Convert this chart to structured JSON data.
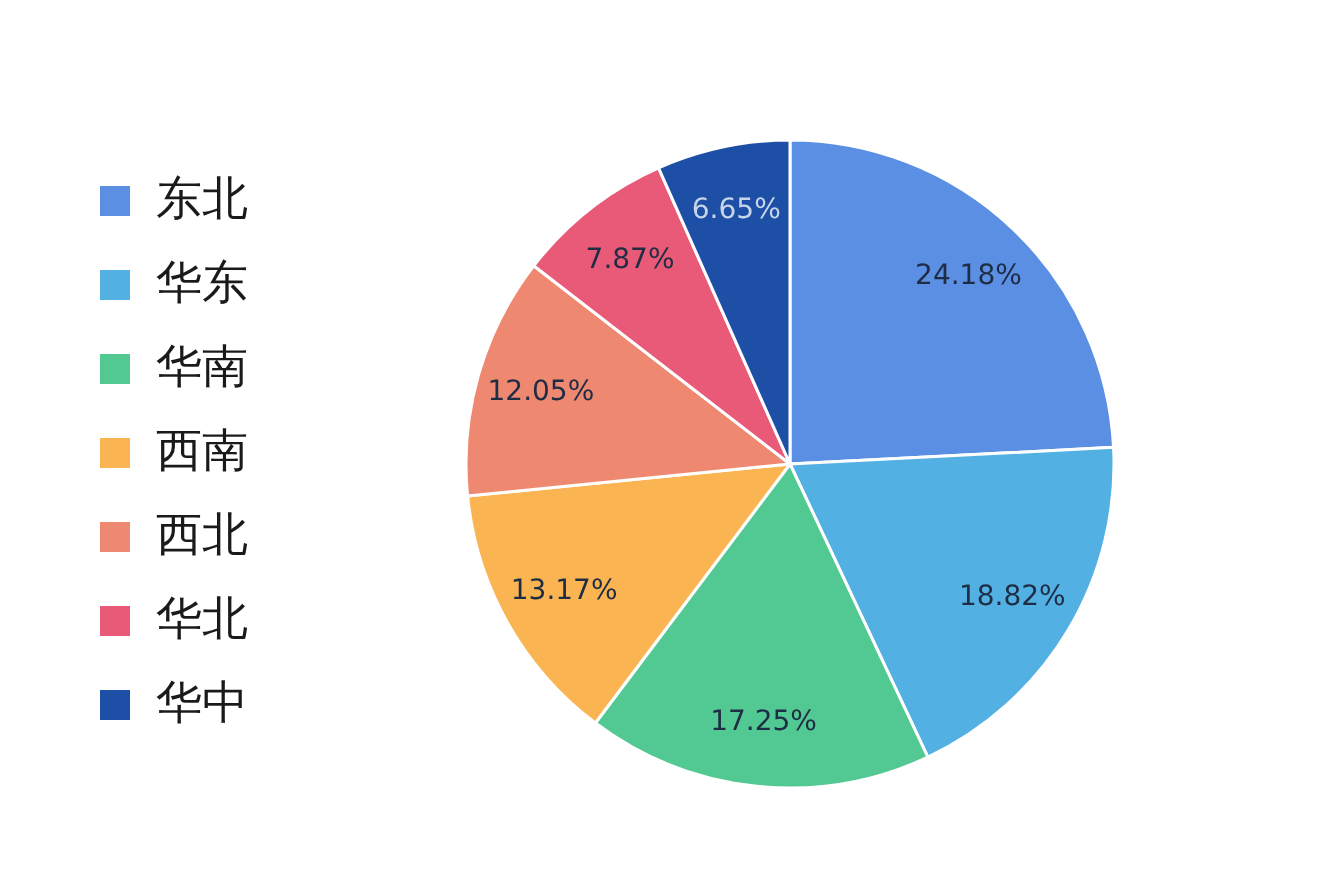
{
  "chart_data": {
    "type": "pie",
    "categories": [
      "东北",
      "华东",
      "华南",
      "西南",
      "西北",
      "华北",
      "华中"
    ],
    "values": [
      24.18,
      18.82,
      17.25,
      13.17,
      12.05,
      7.87,
      6.65
    ],
    "colors": [
      "#5b8fe3",
      "#52b0e3",
      "#52c992",
      "#fab552",
      "#ef8870",
      "#e95a78",
      "#1e4fa6"
    ],
    "value_labels": [
      "24.18%",
      "18.82%",
      "17.25%",
      "13.17%",
      "12.05%",
      "7.87%",
      "6.65%"
    ],
    "legend": "left"
  }
}
